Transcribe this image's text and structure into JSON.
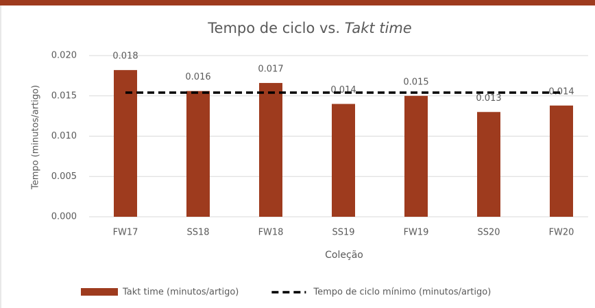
{
  "chart_data": {
    "type": "bar",
    "title": [
      "Tempo de ciclo vs. ",
      "Takt time"
    ],
    "x_label": "Coleção",
    "y_label": "Tempo (minutos/artigo)",
    "categories": [
      "FW17",
      "SS18",
      "FW18",
      "SS19",
      "FW19",
      "SS20",
      "FW20"
    ],
    "series": [
      {
        "name": "Takt time (minutos/artigo)",
        "type": "bar",
        "color": "#9e3b1e",
        "values": [
          0.0182,
          0.0156,
          0.0166,
          0.014,
          0.015,
          0.013,
          0.0138
        ],
        "value_labels": [
          "0.018",
          "0.016",
          "0.017",
          "0.014",
          "0.015",
          "0.013",
          "0.014"
        ]
      },
      {
        "name": "Tempo de ciclo mínimo (minutos/artigo)",
        "type": "line",
        "color": "#000000",
        "dashed": true,
        "values": [
          0.0154,
          0.0154,
          0.0154,
          0.0154,
          0.0154,
          0.0154,
          0.0154
        ]
      }
    ],
    "ylim": [
      0,
      0.02
    ],
    "yticks": [
      {
        "value": 0,
        "label": "0.000"
      },
      {
        "value": 0.005,
        "label": "0.005"
      },
      {
        "value": 0.01,
        "label": "0.010"
      },
      {
        "value": 0.015,
        "label": "0.015"
      },
      {
        "value": 0.02,
        "label": "0.020"
      }
    ],
    "grid": true,
    "legend": "bottom"
  }
}
